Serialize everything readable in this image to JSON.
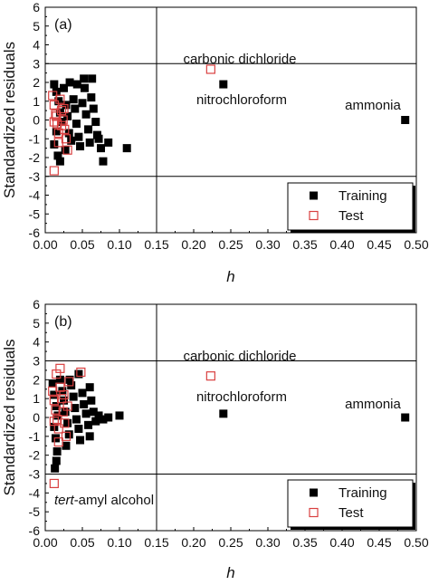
{
  "figure": {
    "panels": [
      "(a)",
      "(b)"
    ]
  },
  "chart_data": [
    {
      "type": "scatter",
      "panel_label": "(a)",
      "xlabel": "h",
      "ylabel": "Standardized residuals",
      "xlim": [
        0.0,
        0.5
      ],
      "ylim": [
        -6,
        6
      ],
      "xticks": [
        "0.00",
        "0.05",
        "0.10",
        "0.15",
        "0.20",
        "0.25",
        "0.30",
        "0.35",
        "0.40",
        "0.45",
        "0.50"
      ],
      "yticks": [
        "-6",
        "-5",
        "-4",
        "-3",
        "-2",
        "-1",
        "0",
        "1",
        "2",
        "3",
        "4",
        "5",
        "6"
      ],
      "reference_lines": {
        "y": [
          3,
          -3
        ],
        "x": [
          0.15
        ]
      },
      "legend": {
        "placement": "bottom-right",
        "entries": [
          "Training",
          "Test"
        ]
      },
      "series": [
        {
          "name": "Training",
          "marker": "filled-square",
          "color": "#000000",
          "points": [
            [
              0.012,
              1.9
            ],
            [
              0.015,
              1.5
            ],
            [
              0.018,
              1.0
            ],
            [
              0.02,
              0.4
            ],
            [
              0.022,
              -0.1
            ],
            [
              0.015,
              -0.6
            ],
            [
              0.012,
              -1.3
            ],
            [
              0.017,
              -1.9
            ],
            [
              0.02,
              -2.2
            ],
            [
              0.025,
              1.7
            ],
            [
              0.028,
              0.8
            ],
            [
              0.03,
              0.2
            ],
            [
              0.032,
              -0.7
            ],
            [
              0.035,
              -1.1
            ],
            [
              0.027,
              -1.6
            ],
            [
              0.038,
              1.1
            ],
            [
              0.04,
              0.6
            ],
            [
              0.042,
              -0.2
            ],
            [
              0.045,
              -0.9
            ],
            [
              0.047,
              -1.4
            ],
            [
              0.05,
              0.9
            ],
            [
              0.052,
              2.2
            ],
            [
              0.053,
              1.7
            ],
            [
              0.055,
              0.3
            ],
            [
              0.058,
              -0.5
            ],
            [
              0.06,
              -1.2
            ],
            [
              0.062,
              1.2
            ],
            [
              0.065,
              0.6
            ],
            [
              0.068,
              -0.1
            ],
            [
              0.07,
              -0.8
            ],
            [
              0.072,
              -1.0
            ],
            [
              0.075,
              -1.5
            ],
            [
              0.078,
              -2.2
            ],
            [
              0.085,
              -1.2
            ],
            [
              0.11,
              -1.5
            ],
            [
              0.033,
              2.0
            ],
            [
              0.043,
              1.9
            ],
            [
              0.063,
              2.2
            ],
            [
              0.24,
              1.9
            ],
            [
              0.485,
              0.0
            ]
          ]
        },
        {
          "name": "Test",
          "marker": "open-square",
          "color": "#d94040",
          "points": [
            [
              0.01,
              1.3
            ],
            [
              0.012,
              0.8
            ],
            [
              0.014,
              0.3
            ],
            [
              0.016,
              -0.2
            ],
            [
              0.018,
              -0.7
            ],
            [
              0.02,
              1.1
            ],
            [
              0.022,
              0.5
            ],
            [
              0.024,
              0.0
            ],
            [
              0.026,
              -0.5
            ],
            [
              0.028,
              -1.0
            ],
            [
              0.012,
              -0.1
            ],
            [
              0.018,
              -1.2
            ],
            [
              0.022,
              -0.3
            ],
            [
              0.025,
              0.6
            ],
            [
              0.03,
              -1.6
            ],
            [
              0.015,
              0.2
            ],
            [
              0.012,
              -2.7
            ],
            [
              0.223,
              2.7
            ]
          ]
        }
      ],
      "annotations": [
        "carbonic dichloride",
        "nitrochloroform",
        "ammonia"
      ]
    },
    {
      "type": "scatter",
      "panel_label": "(b)",
      "xlabel": "h",
      "ylabel": "Standardized residuals",
      "xlim": [
        0.0,
        0.5
      ],
      "ylim": [
        -6,
        6
      ],
      "xticks": [
        "0.00",
        "0.05",
        "0.10",
        "0.15",
        "0.20",
        "0.25",
        "0.30",
        "0.35",
        "0.40",
        "0.45",
        "0.50"
      ],
      "yticks": [
        "-6",
        "-5",
        "-4",
        "-3",
        "-2",
        "-1",
        "0",
        "1",
        "2",
        "3",
        "4",
        "5",
        "6"
      ],
      "reference_lines": {
        "y": [
          3,
          -3
        ],
        "x": [
          0.15
        ]
      },
      "legend": {
        "placement": "bottom-right",
        "entries": [
          "Training",
          "Test"
        ]
      },
      "series": [
        {
          "name": "Training",
          "marker": "filled-square",
          "color": "#000000",
          "points": [
            [
              0.01,
              1.8
            ],
            [
              0.012,
              1.2
            ],
            [
              0.015,
              0.6
            ],
            [
              0.017,
              0.1
            ],
            [
              0.012,
              -0.5
            ],
            [
              0.014,
              -1.1
            ],
            [
              0.016,
              -1.8
            ],
            [
              0.015,
              -2.3
            ],
            [
              0.013,
              -2.7
            ],
            [
              0.02,
              2.0
            ],
            [
              0.023,
              1.4
            ],
            [
              0.025,
              0.9
            ],
            [
              0.027,
              0.3
            ],
            [
              0.03,
              -0.3
            ],
            [
              0.032,
              -0.9
            ],
            [
              0.028,
              -1.5
            ],
            [
              0.035,
              1.7
            ],
            [
              0.038,
              1.1
            ],
            [
              0.04,
              0.5
            ],
            [
              0.042,
              -0.1
            ],
            [
              0.045,
              -0.6
            ],
            [
              0.047,
              -1.2
            ],
            [
              0.05,
              1.3
            ],
            [
              0.052,
              0.7
            ],
            [
              0.055,
              0.2
            ],
            [
              0.058,
              -0.4
            ],
            [
              0.06,
              -1.0
            ],
            [
              0.062,
              0.9
            ],
            [
              0.065,
              0.3
            ],
            [
              0.068,
              -0.2
            ],
            [
              0.072,
              0.1
            ],
            [
              0.078,
              -0.1
            ],
            [
              0.085,
              0.0
            ],
            [
              0.1,
              0.1
            ],
            [
              0.033,
              2.0
            ],
            [
              0.045,
              2.3
            ],
            [
              0.06,
              1.6
            ],
            [
              0.24,
              0.2
            ],
            [
              0.485,
              0.0
            ]
          ]
        },
        {
          "name": "Test",
          "marker": "open-square",
          "color": "#d94040",
          "points": [
            [
              0.01,
              1.4
            ],
            [
              0.012,
              0.9
            ],
            [
              0.014,
              0.4
            ],
            [
              0.016,
              -0.1
            ],
            [
              0.018,
              -0.6
            ],
            [
              0.02,
              1.6
            ],
            [
              0.022,
              1.0
            ],
            [
              0.024,
              0.3
            ],
            [
              0.026,
              -0.3
            ],
            [
              0.028,
              -1.0
            ],
            [
              0.015,
              2.3
            ],
            [
              0.02,
              2.6
            ],
            [
              0.025,
              1.2
            ],
            [
              0.018,
              -1.3
            ],
            [
              0.012,
              -0.2
            ],
            [
              0.03,
              0.6
            ],
            [
              0.032,
              1.9
            ],
            [
              0.048,
              2.4
            ],
            [
              0.012,
              -3.5
            ],
            [
              0.223,
              2.2
            ]
          ]
        }
      ],
      "annotations": [
        "carbonic dichloride",
        "nitrochloroform",
        "ammonia",
        "tert-amyl alcohol"
      ]
    }
  ]
}
